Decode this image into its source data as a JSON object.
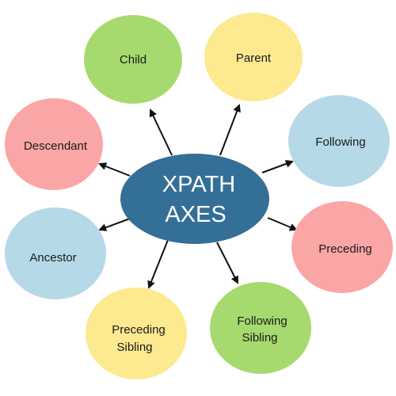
{
  "center": {
    "line1": "XPATH",
    "line2": "AXES",
    "color": "#346f97"
  },
  "nodes": [
    {
      "id": "child",
      "lines": [
        "Child"
      ],
      "color": "#a6da6e"
    },
    {
      "id": "parent",
      "lines": [
        "Parent"
      ],
      "color": "#fde98f"
    },
    {
      "id": "following",
      "lines": [
        "Following"
      ],
      "color": "#b6d9e8"
    },
    {
      "id": "preceding",
      "lines": [
        "Preceding"
      ],
      "color": "#fba6a6"
    },
    {
      "id": "following-sibling",
      "lines": [
        "Following",
        "Sibling"
      ],
      "color": "#a6da6e"
    },
    {
      "id": "preceding-sibling",
      "lines": [
        "Preceding",
        "Sibling"
      ],
      "color": "#fde98f"
    },
    {
      "id": "ancestor",
      "lines": [
        "Ancestor"
      ],
      "color": "#b6d9e8"
    },
    {
      "id": "descendant",
      "lines": [
        "Descendant"
      ],
      "color": "#fba6a6"
    }
  ],
  "arrow_color": "#111111"
}
